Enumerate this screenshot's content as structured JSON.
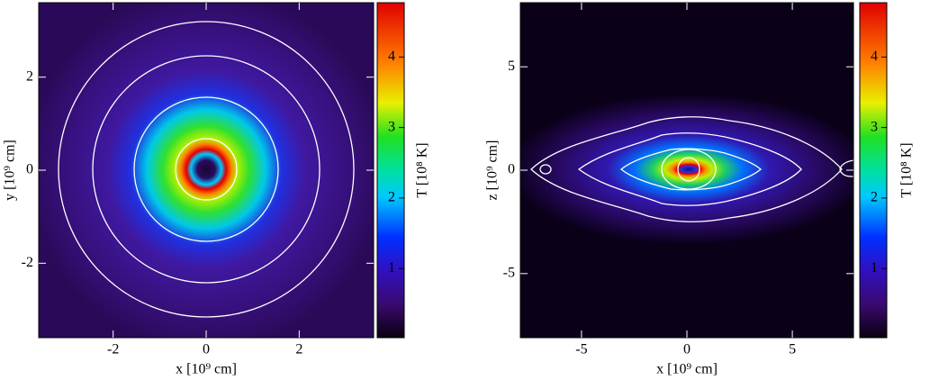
{
  "chart_data": [
    {
      "type": "heatmap",
      "xlabel": "x [10⁹ cm]",
      "ylabel": "y [10⁹ cm]",
      "xlim": [
        -3.6,
        3.6
      ],
      "ylim": [
        -3.6,
        3.6
      ],
      "xticks": [
        -2,
        0,
        2
      ],
      "yticks": [
        -2,
        0,
        2
      ],
      "colorbar": {
        "label": "T [10⁸ K]",
        "lim": [
          0.02,
          4.77
        ],
        "ticks": [
          1,
          2,
          3,
          4
        ]
      }
    },
    {
      "type": "heatmap",
      "xlabel": "x [10⁹ cm]",
      "ylabel": "z [10⁹ cm]",
      "xlim": [
        -7.9,
        7.9
      ],
      "ylim": [
        -8.1,
        8.1
      ],
      "xticks": [
        -5,
        0,
        5
      ],
      "yticks": [
        -5,
        0,
        5
      ],
      "colorbar": {
        "label": "T [10⁸ K]",
        "lim": [
          0.02,
          4.77
        ],
        "ticks": [
          1,
          2,
          3,
          4
        ]
      }
    }
  ]
}
